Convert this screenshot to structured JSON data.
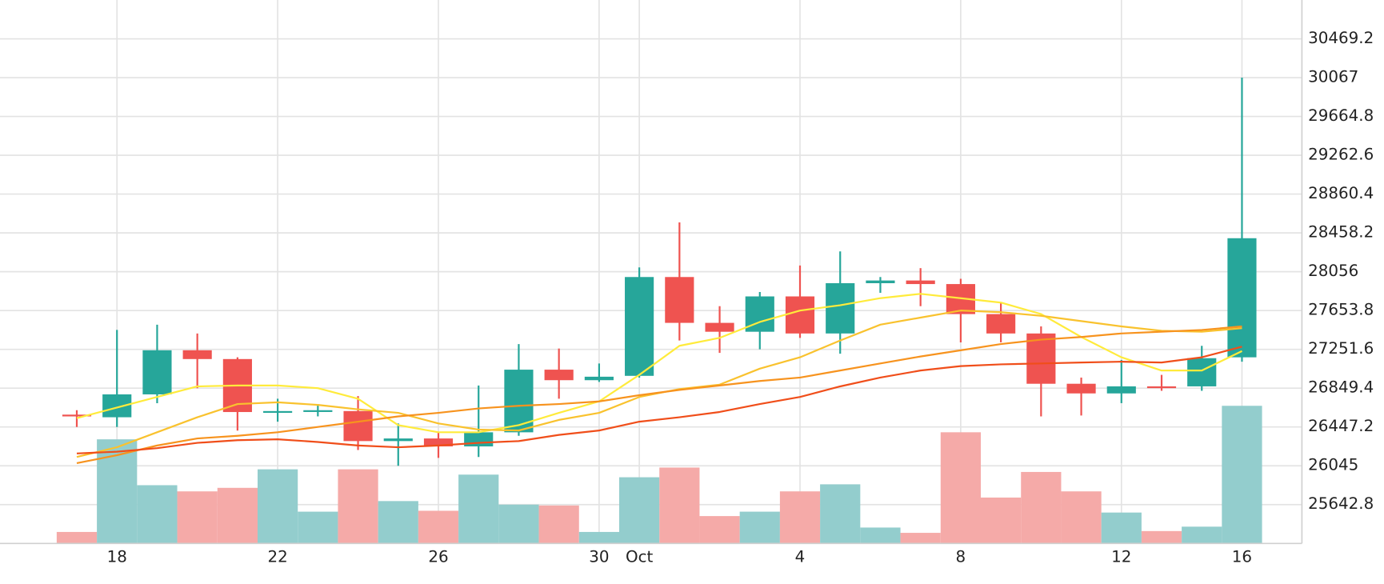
{
  "chart_data": {
    "type": "candlestick",
    "categories": [
      null,
      "18",
      null,
      null,
      null,
      "22",
      null,
      null,
      null,
      "26",
      null,
      null,
      null,
      "30",
      "Oct",
      null,
      null,
      null,
      "4",
      null,
      null,
      null,
      "8",
      null,
      null,
      null,
      "12",
      null,
      null,
      "16"
    ],
    "open": [
      26575,
      26548,
      26785,
      27242,
      27151,
      26602,
      26612,
      26612,
      26301,
      26328,
      26246,
      26392,
      27041,
      26932,
      26977,
      28001,
      27526,
      27434,
      27800,
      27416,
      27937,
      27965,
      27928,
      27617,
      27416,
      26895,
      26795,
      26868,
      26868,
      27169
    ],
    "high": [
      26621,
      27453,
      27507,
      27416,
      27169,
      26740,
      26685,
      26767,
      26484,
      26392,
      26877,
      27306,
      27260,
      27105,
      28101,
      28567,
      27699,
      27846,
      28120,
      28266,
      28001,
      28093,
      27983,
      27736,
      27489,
      26959,
      27142,
      26987,
      27288,
      30067
    ],
    "low": [
      26447,
      26447,
      26694,
      26849,
      26410,
      26502,
      26557,
      26209,
      26045,
      26127,
      26136,
      26356,
      26740,
      26914,
      26959,
      27343,
      27215,
      27252,
      27370,
      27206,
      27837,
      27699,
      27324,
      27324,
      26557,
      26566,
      26694,
      26822,
      26822,
      27124
    ],
    "close": [
      26557,
      26785,
      27242,
      27151,
      26602,
      26612,
      26621,
      26301,
      26328,
      26246,
      26392,
      27041,
      26932,
      26968,
      28001,
      27526,
      27434,
      27800,
      27416,
      27937,
      27965,
      27928,
      27617,
      27416,
      26895,
      26795,
      26868,
      26859,
      27160,
      28403
    ],
    "up_color": "#26a69a",
    "down_color": "#ef5350",
    "volume": [
      13,
      118,
      66,
      59,
      63,
      84,
      36,
      84,
      48,
      37,
      78,
      44,
      43,
      13,
      75,
      86,
      31,
      36,
      59,
      67,
      18,
      12,
      126,
      52,
      81,
      59,
      35,
      14,
      19,
      156
    ],
    "volume_up_color": "#93cdcd",
    "volume_down_color": "#f5aaa8",
    "y2lim": [
      0,
      616
    ],
    "series": [
      {
        "color": "#ffeb3b",
        "values": [
          26539,
          26648,
          26758,
          26868,
          26877,
          26877,
          26849,
          26740,
          26466,
          26392,
          26392,
          26466,
          26593,
          26712,
          26987,
          27288,
          27370,
          27535,
          27654,
          27709,
          27782,
          27827,
          27782,
          27736,
          27617,
          27380,
          27169,
          27032,
          27032,
          27233
        ]
      },
      {
        "color": "#f9c22e",
        "values": [
          26136,
          26237,
          26392,
          26548,
          26685,
          26703,
          26676,
          26630,
          26593,
          26484,
          26420,
          26411,
          26520,
          26593,
          26758,
          26840,
          26886,
          27051,
          27169,
          27343,
          27508,
          27581,
          27654,
          27636,
          27599,
          27544,
          27489,
          27444,
          27434,
          27471
        ]
      },
      {
        "color": "#f7931e",
        "values": [
          26072,
          26155,
          26255,
          26328,
          26356,
          26392,
          26447,
          26502,
          26557,
          26593,
          26639,
          26667,
          26685,
          26712,
          26776,
          26831,
          26877,
          26923,
          26959,
          27032,
          27105,
          27178,
          27242,
          27306,
          27352,
          27380,
          27416,
          27434,
          27453,
          27489
        ]
      },
      {
        "color": "#f04e1a",
        "values": [
          26173,
          26191,
          26228,
          26283,
          26310,
          26319,
          26292,
          26255,
          26237,
          26255,
          26283,
          26301,
          26365,
          26411,
          26502,
          26548,
          26603,
          26685,
          26758,
          26868,
          26959,
          27032,
          27078,
          27096,
          27105,
          27115,
          27124,
          27115,
          27169,
          27279
        ]
      }
    ],
    "ylim": [
      25240.6,
      30871.4
    ],
    "yticks": [
      25642.8,
      26045,
      26447.2,
      26849.4,
      27251.6,
      27653.8,
      28056,
      28458.2,
      28860.4,
      29262.6,
      29664.8,
      30067,
      30469.2
    ],
    "grid": true
  }
}
